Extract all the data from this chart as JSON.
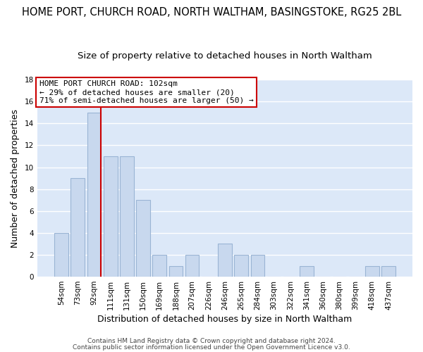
{
  "title": "HOME PORT, CHURCH ROAD, NORTH WALTHAM, BASINGSTOKE, RG25 2BL",
  "subtitle": "Size of property relative to detached houses in North Waltham",
  "xlabel": "Distribution of detached houses by size in North Waltham",
  "ylabel": "Number of detached properties",
  "bar_labels": [
    "54sqm",
    "73sqm",
    "92sqm",
    "111sqm",
    "131sqm",
    "150sqm",
    "169sqm",
    "188sqm",
    "207sqm",
    "226sqm",
    "246sqm",
    "265sqm",
    "284sqm",
    "303sqm",
    "322sqm",
    "341sqm",
    "360sqm",
    "380sqm",
    "399sqm",
    "418sqm",
    "437sqm"
  ],
  "bar_values": [
    4,
    9,
    15,
    11,
    11,
    7,
    2,
    1,
    2,
    0,
    3,
    2,
    2,
    0,
    0,
    1,
    0,
    0,
    0,
    1,
    1
  ],
  "bar_color": "#c8d8ee",
  "bar_edge_color": "#9ab4d4",
  "reference_line_index": 2,
  "reference_line_color": "#cc0000",
  "ylim": [
    0,
    18
  ],
  "yticks": [
    0,
    2,
    4,
    6,
    8,
    10,
    12,
    14,
    16,
    18
  ],
  "annotation_title": "HOME PORT CHURCH ROAD: 102sqm",
  "annotation_line1": "← 29% of detached houses are smaller (20)",
  "annotation_line2": "71% of semi-detached houses are larger (50) →",
  "annotation_box_facecolor": "#ffffff",
  "annotation_box_edgecolor": "#cc0000",
  "footer_line1": "Contains HM Land Registry data © Crown copyright and database right 2024.",
  "footer_line2": "Contains public sector information licensed under the Open Government Licence v3.0.",
  "fig_background_color": "#ffffff",
  "plot_background_color": "#dce8f8",
  "grid_color": "#ffffff",
  "title_fontsize": 10.5,
  "subtitle_fontsize": 9.5,
  "axis_label_fontsize": 9,
  "tick_fontsize": 7.5,
  "footer_fontsize": 6.5,
  "annotation_fontsize": 8
}
